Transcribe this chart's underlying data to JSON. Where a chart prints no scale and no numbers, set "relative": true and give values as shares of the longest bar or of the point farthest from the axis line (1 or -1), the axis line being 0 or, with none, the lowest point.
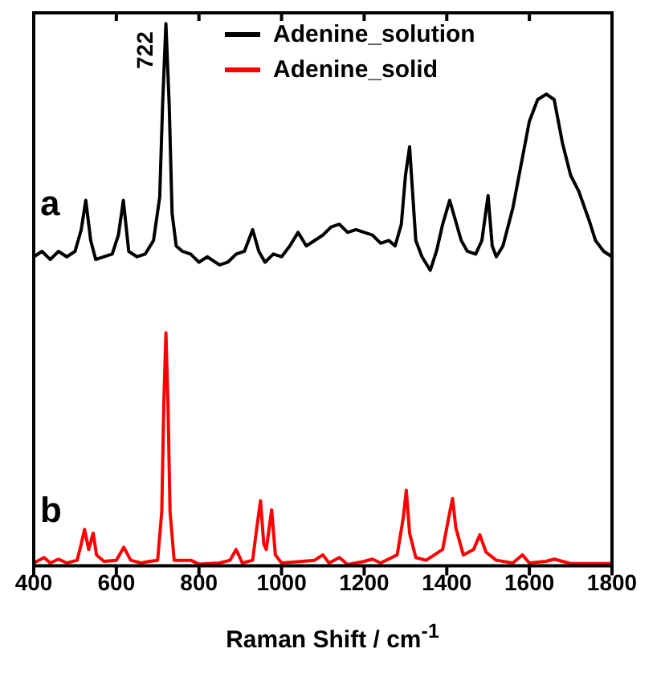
{
  "chart_data": {
    "type": "line",
    "relative": true,
    "xlabel": "Raman Shift / cm$^{-1}$",
    "xlim": [
      400,
      1800
    ],
    "xticks": [
      400,
      600,
      800,
      1000,
      1200,
      1400,
      1600,
      1800
    ],
    "legend": "top right",
    "grid": false,
    "marker": "none",
    "line_style": "solid",
    "annotations": [
      "722",
      "a",
      "b"
    ],
    "series": [
      {
        "name": "Adenine_solution",
        "color": "#000000",
        "x": [
          400,
          420,
          440,
          460,
          480,
          500,
          515,
          526,
          538,
          550,
          570,
          590,
          605,
          617,
          630,
          650,
          670,
          690,
          705,
          712,
          720,
          728,
          735,
          745,
          760,
          780,
          800,
          820,
          850,
          870,
          890,
          910,
          930,
          945,
          960,
          980,
          1000,
          1020,
          1040,
          1060,
          1080,
          1100,
          1120,
          1140,
          1160,
          1180,
          1200,
          1220,
          1240,
          1260,
          1275,
          1290,
          1300,
          1310,
          1318,
          1325,
          1340,
          1360,
          1375,
          1390,
          1407,
          1420,
          1435,
          1450,
          1470,
          1485,
          1500,
          1510,
          1520,
          1536,
          1560,
          1580,
          1600,
          1620,
          1641,
          1660,
          1680,
          1700,
          1720,
          1746,
          1760,
          1780,
          1800
        ],
        "values": [
          0.57,
          0.58,
          0.565,
          0.58,
          0.57,
          0.58,
          0.62,
          0.674,
          0.6,
          0.565,
          0.57,
          0.575,
          0.61,
          0.674,
          0.58,
          0.57,
          0.575,
          0.6,
          0.68,
          0.85,
          1.0,
          0.85,
          0.65,
          0.59,
          0.58,
          0.575,
          0.56,
          0.57,
          0.555,
          0.56,
          0.575,
          0.58,
          0.62,
          0.58,
          0.56,
          0.575,
          0.57,
          0.59,
          0.615,
          0.59,
          0.6,
          0.61,
          0.625,
          0.63,
          0.615,
          0.62,
          0.615,
          0.61,
          0.595,
          0.6,
          0.59,
          0.63,
          0.72,
          0.773,
          0.68,
          0.6,
          0.57,
          0.545,
          0.58,
          0.63,
          0.674,
          0.64,
          0.6,
          0.58,
          0.575,
          0.6,
          0.683,
          0.59,
          0.57,
          0.59,
          0.66,
          0.74,
          0.82,
          0.86,
          0.87,
          0.86,
          0.78,
          0.72,
          0.69,
          0.634,
          0.6,
          0.58,
          0.57
        ]
      },
      {
        "name": "Adenine_solid",
        "color": "#ff0000",
        "x": [
          400,
          425,
          440,
          460,
          480,
          505,
          515,
          523,
          533,
          544,
          552,
          570,
          600,
          618,
          635,
          660,
          680,
          700,
          710,
          715,
          720,
          725,
          730,
          740,
          780,
          800,
          850,
          875,
          890,
          905,
          930,
          940,
          949,
          957,
          963,
          976,
          985,
          1000,
          1050,
          1080,
          1100,
          1115,
          1140,
          1160,
          1200,
          1220,
          1240,
          1280,
          1295,
          1302,
          1310,
          1325,
          1350,
          1390,
          1405,
          1414,
          1422,
          1440,
          1465,
          1480,
          1495,
          1520,
          1560,
          1583,
          1600,
          1640,
          1660,
          1700,
          1800
        ],
        "values": [
          0.005,
          0.015,
          0.005,
          0.012,
          0.005,
          0.01,
          0.04,
          0.067,
          0.03,
          0.06,
          0.02,
          0.008,
          0.01,
          0.034,
          0.01,
          0.005,
          0.008,
          0.01,
          0.1,
          0.3,
          0.43,
          0.3,
          0.1,
          0.01,
          0.01,
          0.003,
          0.005,
          0.01,
          0.03,
          0.005,
          0.01,
          0.07,
          0.12,
          0.04,
          0.03,
          0.103,
          0.02,
          0.005,
          0.008,
          0.01,
          0.02,
          0.005,
          0.015,
          0.002,
          0.008,
          0.012,
          0.005,
          0.02,
          0.09,
          0.139,
          0.06,
          0.015,
          0.01,
          0.03,
          0.09,
          0.124,
          0.07,
          0.02,
          0.03,
          0.057,
          0.025,
          0.01,
          0.005,
          0.02,
          0.005,
          0.008,
          0.012,
          0.004,
          0.004
        ]
      }
    ]
  }
}
